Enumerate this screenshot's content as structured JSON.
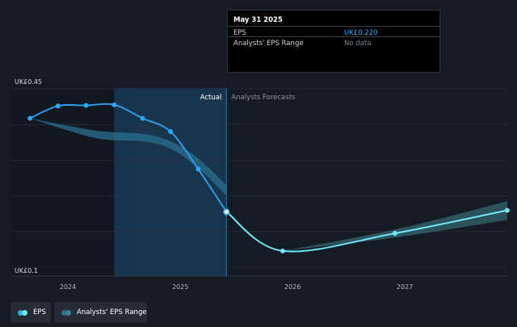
{
  "tooltip": {
    "date": "May 31 2025",
    "rows": [
      {
        "label": "EPS",
        "value": "UK£0.220"
      },
      {
        "label": "Analysts' EPS Range",
        "value": "No data"
      }
    ]
  },
  "legend": {
    "eps_label": "EPS",
    "range_label": "Analysts' EPS Range"
  },
  "colors": {
    "background": "#151b24",
    "eps_line": "#2e9ce6",
    "forecast_line": "#6ee7f5",
    "range_band": "#2a6f8f",
    "actual_region": "#1a3a55",
    "gridline": "#2a313c"
  },
  "chart_data": {
    "type": "line",
    "title": "",
    "ylim": [
      0.1,
      0.45
    ],
    "y_tick_labels": [
      "UK£0.45",
      "UK£0.1"
    ],
    "x_tick_labels": [
      "2024",
      "2025",
      "2026",
      "2027"
    ],
    "grid": true,
    "region_labels": {
      "actual": "Actual",
      "forecast": "Analysts Forecasts"
    },
    "series": [
      {
        "name": "EPS",
        "x": [
          "2023-08-31",
          "2023-11-30",
          "2024-02-29",
          "2024-05-31",
          "2024-08-31",
          "2024-11-30",
          "2025-02-28",
          "2025-05-31"
        ],
        "y": [
          0.395,
          0.418,
          0.419,
          0.42,
          0.395,
          0.37,
          0.3,
          0.22
        ]
      },
      {
        "name": "EPS forecast",
        "x": [
          "2025-05-31",
          "2025-11-30",
          "2026-11-30",
          "2027-11-30"
        ],
        "y": [
          0.22,
          0.147,
          0.18,
          0.223
        ]
      }
    ],
    "range": {
      "name": "Analysts' EPS Range",
      "x": [
        "2023-08-31",
        "2024-03-31",
        "2024-08-31",
        "2024-11-30",
        "2025-02-28",
        "2025-05-31"
      ],
      "upper": [
        0.395,
        0.372,
        0.366,
        0.352,
        0.32,
        0.27
      ],
      "lower": [
        0.395,
        0.358,
        0.352,
        0.338,
        0.302,
        0.25
      ]
    },
    "forecast_range": {
      "x": [
        "2026-11-30",
        "2027-11-30"
      ],
      "upper": [
        0.187,
        0.24
      ],
      "lower": [
        0.172,
        0.205
      ]
    }
  }
}
